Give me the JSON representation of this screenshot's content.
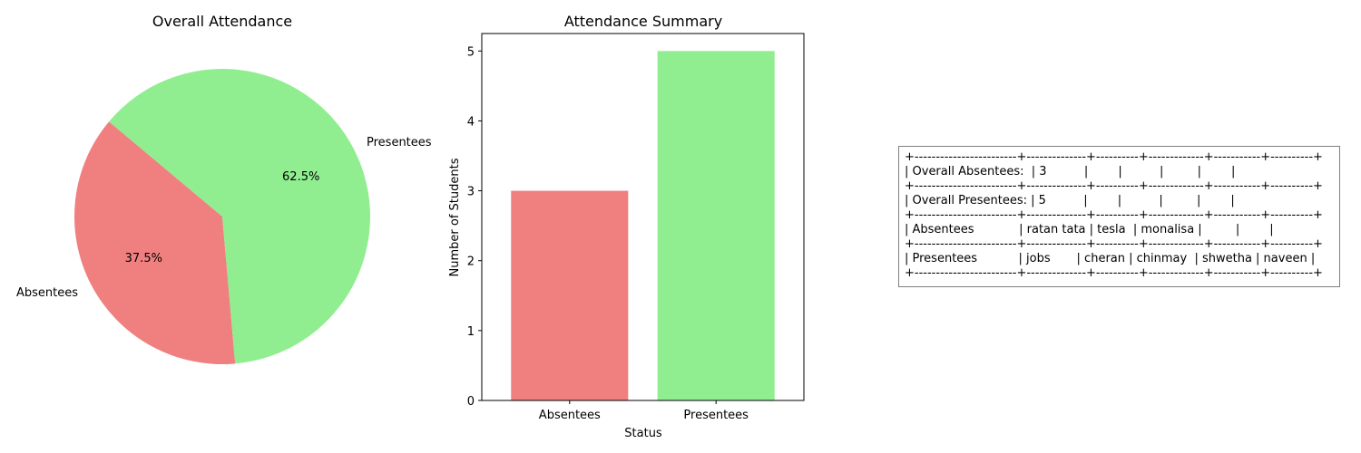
{
  "colors": {
    "absentees": "#F08080",
    "presentees": "#90EE90"
  },
  "chart_data": [
    {
      "type": "pie",
      "title": "Overall Attendance",
      "labels": [
        "Absentees",
        "Presentees"
      ],
      "values": [
        3,
        5
      ],
      "percent_labels": [
        "37.5%",
        "62.5%"
      ],
      "colors": [
        "#F08080",
        "#90EE90"
      ],
      "start_angle": 140
    },
    {
      "type": "bar",
      "title": "Attendance Summary",
      "categories": [
        "Absentees",
        "Presentees"
      ],
      "values": [
        3,
        5
      ],
      "colors": [
        "#F08080",
        "#90EE90"
      ],
      "xlabel": "Status",
      "ylabel": "Number of Students",
      "ylim": [
        0,
        5.25
      ],
      "yticks": [
        0,
        1,
        2,
        3,
        4,
        5
      ]
    }
  ],
  "summary_table": {
    "lines": [
      "+------------------------+--------------+----------+-------------+-----------+----------+",
      "| Overall Absentees:  | 3          |        |          |         |        |",
      "+------------------------+--------------+----------+-------------+-----------+----------+",
      "| Overall Presentees: | 5          |        |          |         |        |",
      "+------------------------+--------------+----------+-------------+-----------+----------+",
      "| Absentees            | ratan tata | tesla  | monalisa |         |        |",
      "+------------------------+--------------+----------+-------------+-----------+----------+",
      "| Presentees           | jobs       | cheran | chinmay  | shwetha | naveen |",
      "+------------------------+--------------+----------+-------------+-----------+----------+"
    ]
  }
}
